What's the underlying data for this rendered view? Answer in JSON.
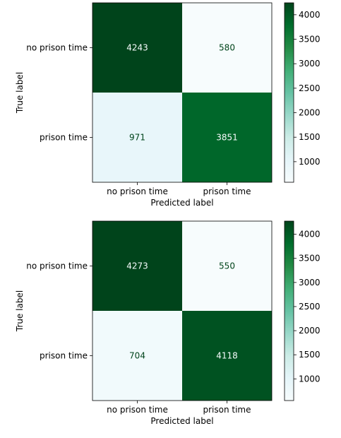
{
  "chart_data": [
    {
      "type": "heatmap",
      "title": "",
      "xlabel": "Predicted label",
      "ylabel": "True label",
      "x_categories": [
        "no prison time",
        "prison time"
      ],
      "y_categories": [
        "no prison time",
        "prison time"
      ],
      "values": [
        [
          4243,
          580
        ],
        [
          971,
          3851
        ]
      ],
      "colorbar": {
        "range": [
          580,
          4243
        ],
        "ticks": [
          1000,
          1500,
          2000,
          2500,
          3000,
          3500,
          4000
        ]
      },
      "colormap": "BuGn",
      "colors": {
        "low": "#f7fcfd",
        "high": "#00441b"
      }
    },
    {
      "type": "heatmap",
      "title": "",
      "xlabel": "Predicted label",
      "ylabel": "True label",
      "x_categories": [
        "no prison time",
        "prison time"
      ],
      "y_categories": [
        "no prison time",
        "prison time"
      ],
      "values": [
        [
          4273,
          550
        ],
        [
          704,
          4118
        ]
      ],
      "colorbar": {
        "range": [
          550,
          4273
        ],
        "ticks": [
          1000,
          1500,
          2000,
          2500,
          3000,
          3500,
          4000
        ]
      },
      "colormap": "BuGn",
      "colors": {
        "low": "#f7fcfd",
        "high": "#00441b"
      }
    }
  ]
}
